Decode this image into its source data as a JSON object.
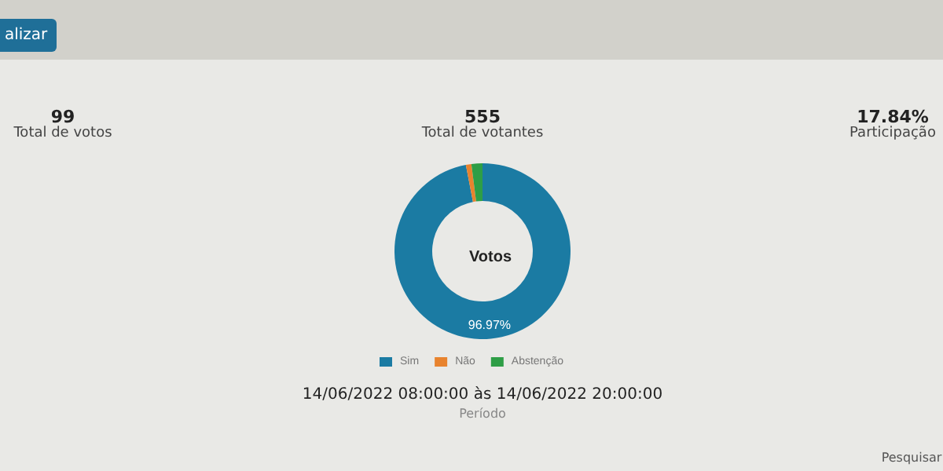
{
  "chart_data": {
    "type": "donut",
    "title": "Votos",
    "categories": [
      "Sim",
      "Não",
      "Abstenção"
    ],
    "values": [
      96.97,
      1.01,
      2.02
    ],
    "colors": [
      "#1b7ba3",
      "#e8832e",
      "#2e9e46"
    ],
    "value_labels": [
      "96.97%",
      null,
      null
    ],
    "legend": "bottom",
    "annotations": [
      "alizar",
      "99",
      "Total de votos",
      "555",
      "Total de votantes",
      "17.84%",
      "Participação",
      "14/06/2022 08:00:00 às 14/06/2022 20:00:00",
      "Período",
      "Pesquisar"
    ]
  }
}
